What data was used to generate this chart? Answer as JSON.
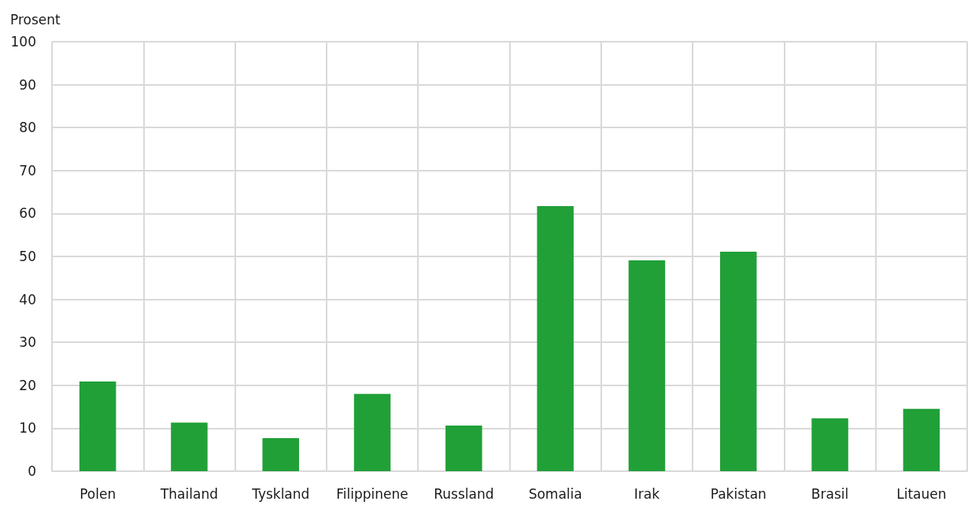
{
  "chart_data": {
    "type": "bar",
    "ylabel": "Prosent",
    "categories": [
      "Polen",
      "Thailand",
      "Tyskland",
      "Filippinene",
      "Russland",
      "Somalia",
      "Irak",
      "Pakistan",
      "Brasil",
      "Litauen"
    ],
    "values": [
      20.9,
      11.3,
      7.7,
      18.0,
      10.6,
      61.7,
      49.1,
      51.1,
      12.3,
      14.5
    ],
    "color": "#21a038",
    "ylim": [
      0,
      100
    ],
    "yticks": [
      0,
      10,
      20,
      30,
      40,
      50,
      60,
      70,
      80,
      90,
      100
    ],
    "grid": true
  }
}
